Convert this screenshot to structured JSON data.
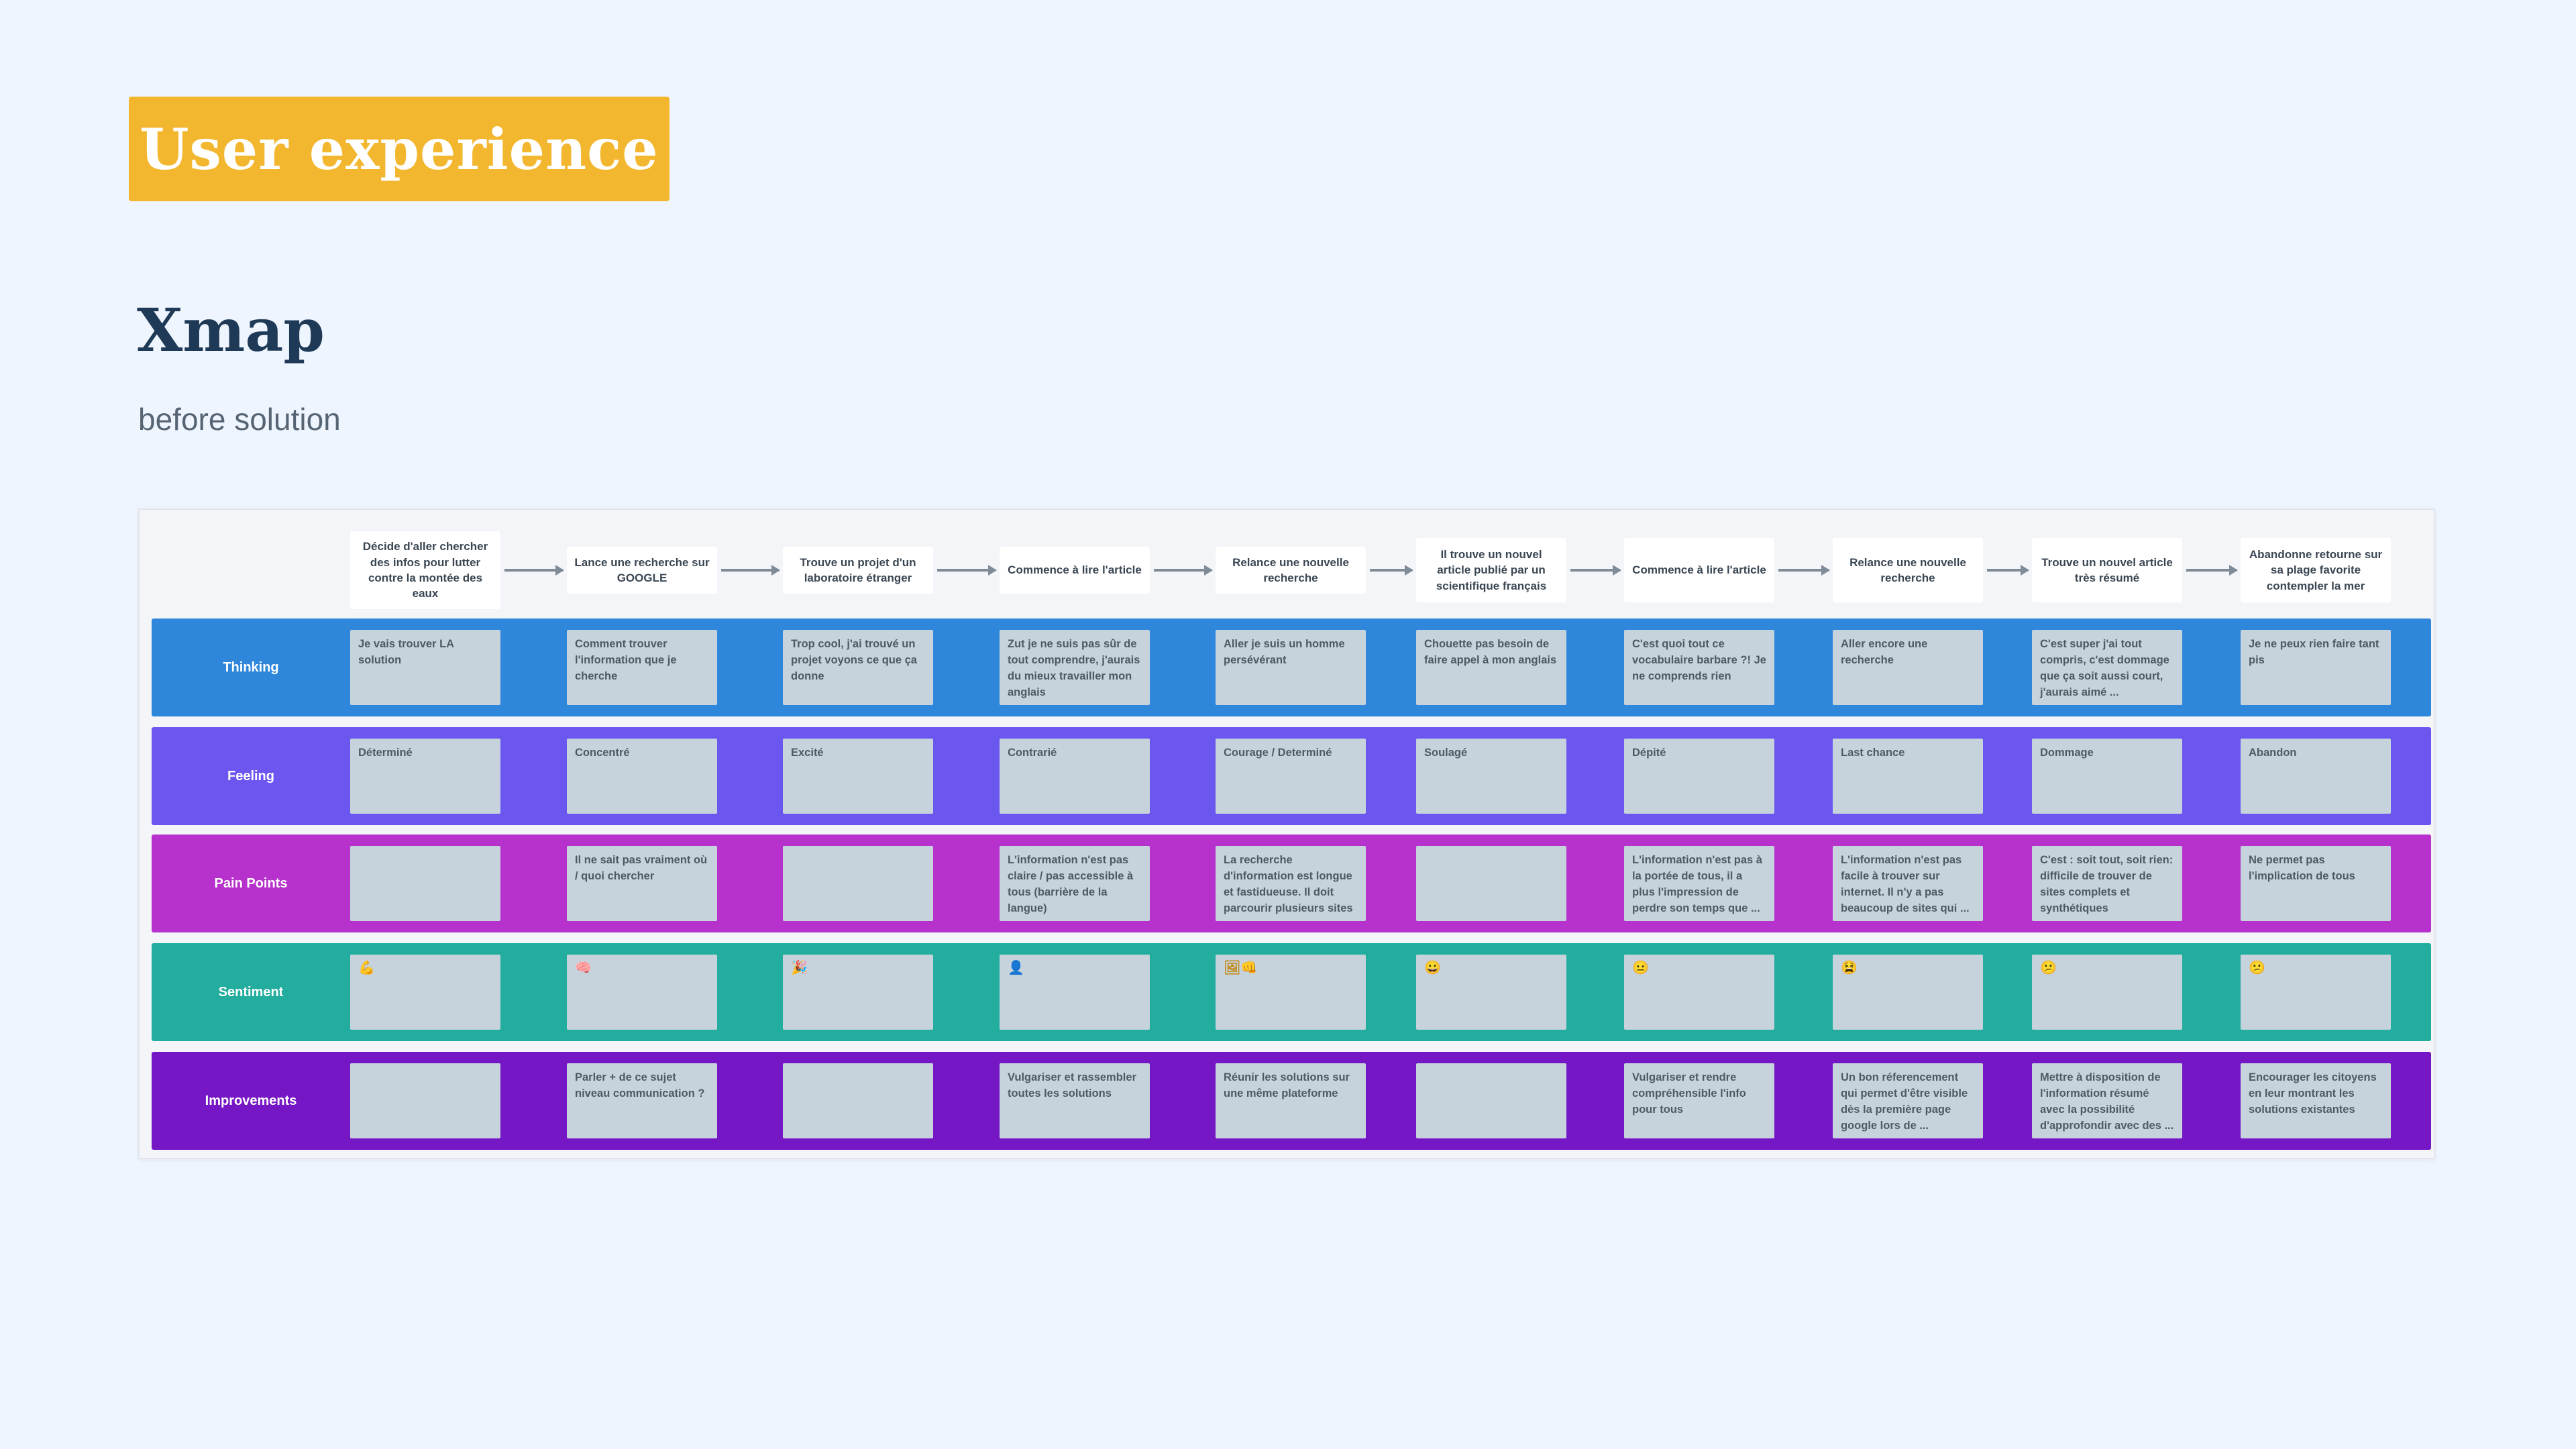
{
  "header": {
    "badge": "User experience",
    "title": "Xmap",
    "subtitle": "before solution"
  },
  "map": {
    "steps": [
      "Décide d'aller chercher des infos pour lutter contre la montée des eaux",
      "Lance une recherche sur GOOGLE",
      "Trouve un projet d'un laboratoire étranger",
      "Commence à lire l'article",
      "Relance une nouvelle recherche",
      "Il trouve un nouvel article publié par un scientifique français",
      "Commence à lire l'article",
      "Relance une nouvelle recherche",
      "Trouve un nouvel article très résumé",
      "Abandonne retourne sur sa plage favorite contempler la mer"
    ],
    "lanes": [
      {
        "label": "Thinking",
        "color": "#2f87db",
        "cards": [
          "Je vais trouver LA solution",
          "Comment trouver l'information que je cherche",
          "Trop cool, j'ai trouvé un projet voyons ce que ça donne",
          "Zut je ne suis pas sûr de tout comprendre, j'aurais du mieux travailler mon anglais",
          "Aller je suis un homme persévérant",
          "Chouette pas besoin de faire appel à mon anglais",
          "C'est quoi tout ce vocabulaire barbare ?! Je ne comprends rien",
          "Aller encore une recherche",
          "C'est super j'ai tout compris, c'est dommage que ça soit aussi court, j'aurais aimé ...",
          "Je ne peux rien faire tant pis"
        ]
      },
      {
        "label": "Feeling",
        "color": "#6b57ef",
        "cards": [
          "Déterminé",
          "Concentré",
          "Excité",
          "Contrarié",
          "Courage / Determiné",
          "Soulagé",
          "Dépité",
          "Last chance",
          "Dommage",
          "Abandon"
        ]
      },
      {
        "label": "Pain Points",
        "color": "#b731cc",
        "cards": [
          "",
          "Il ne sait pas vraiment où / quoi chercher",
          "",
          "L'information n'est pas claire / pas accessible à tous (barrière de la langue)",
          "La recherche d'information est longue et fastidueuse. Il doit parcourir plusieurs sites",
          "",
          "L'information n'est pas à la portée de tous, il a plus l'impression de perdre son temps que ...",
          "L'information n'est pas facile à trouver sur internet. Il n'y a pas beaucoup de sites qui ...",
          "C'est : soit tout, soit rien: difficile de trouver de sites complets et synthétiques",
          "Ne permet pas l'implication de tous"
        ]
      },
      {
        "label": "Sentiment",
        "color": "#22ad9e",
        "cards": [
          "💪",
          "🧠",
          "🎉",
          "👤",
          "🖼👊",
          "😀",
          "😐",
          "😫",
          "😕",
          "😕"
        ]
      },
      {
        "label": "Improvements",
        "color": "#7517c4",
        "cards": [
          "",
          "Parler + de ce sujet niveau communication ?",
          "",
          "Vulgariser et rassembler toutes les solutions",
          "Réunir les solutions sur une même plateforme",
          "",
          "Vulgariser et rendre compréhensible l'info pour tous",
          "Un bon réferencement qui permet d'être visible dès la première page google lors de ...",
          "Mettre à disposition de l'information résumé avec la possibilité d'approfondir avec des ...",
          "Encourager les citoyens en leur montrant les solutions existantes"
        ]
      }
    ]
  }
}
